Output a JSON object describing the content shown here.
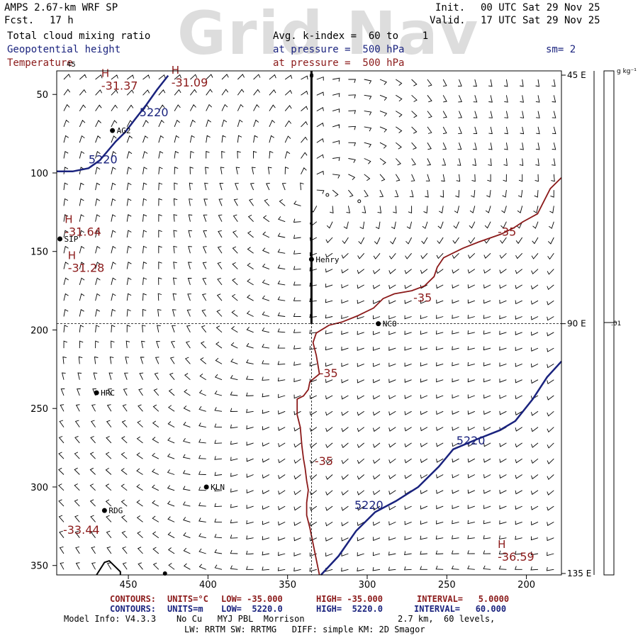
{
  "watermark": "Grid Nav",
  "header": {
    "model": "AMPS 2.67-km WRF SP",
    "fcst_label": "Fcst.",
    "fcst_value": "17 h",
    "init_label": "Init.",
    "init_value": "00 UTC Sat 29 Nov 25",
    "valid_label": "Valid.",
    "valid_value": "17 UTC Sat 29 Nov 25",
    "field1": "Total cloud mixing ratio",
    "field2": "Geopotential height",
    "field3": "Temperature",
    "avg": "Avg. k-index =  60 to    1",
    "pressure2": "at pressure =  500 hPa",
    "pressure3": "at pressure =  500 hPa",
    "sm": "sm= 2"
  },
  "colorbar": {
    "unit": "g kg⁻¹",
    "tick": ".01"
  },
  "legend": {
    "temp": {
      "contours": "CONTOURS:",
      "units": "UNITS=°C",
      "low": "LOW= -35.000",
      "high": "HIGH= -35.000",
      "interval": "INTERVAL=   5.0000"
    },
    "height": {
      "contours": "CONTOURS:",
      "units": "UNITS=m",
      "low": "LOW=  5220.0",
      "high": "HIGH=  5220.0",
      "interval": "INTERVAL=   60.000"
    }
  },
  "footer": {
    "model_info": "Model Info: V4.3.3    No Cu   MYJ PBL  Morrison",
    "resolution": "2.7 km,  60 levels,",
    "line2": "LW: RRTM SW: RRTMG   DIFF: simple KM: 2D Smagor"
  },
  "colors": {
    "height": "#1a237e",
    "temperature": "#8b1a1a",
    "watermark": "#dddddd"
  },
  "chart_data": {
    "type": "contour",
    "x_axis": {
      "lim": [
        495,
        178
      ],
      "ticks": [
        450,
        400,
        350,
        300,
        250,
        200
      ]
    },
    "y_axis": {
      "lim": [
        35,
        356
      ],
      "ticks": [
        50,
        100,
        150,
        200,
        250,
        300,
        350
      ]
    },
    "right_axis": [
      "45 E",
      "90 E",
      "135 E"
    ],
    "top_marker": "0",
    "top_left_marker": "45",
    "cross_x": 335,
    "cross_y": 196,
    "stations": [
      {
        "name": "AG2",
        "x": 460,
        "y": 73
      },
      {
        "name": "SIP",
        "x": 493,
        "y": 142
      },
      {
        "name": "Henry",
        "x": 335,
        "y": 155
      },
      {
        "name": "NCO",
        "x": 293,
        "y": 196
      },
      {
        "name": "HRC",
        "x": 470,
        "y": 240
      },
      {
        "name": "KLN",
        "x": 401,
        "y": 300
      },
      {
        "name": "RDG",
        "x": 465,
        "y": 315
      }
    ],
    "height_contours": [
      {
        "level": 5220,
        "points": [
          [
            495,
            99
          ],
          [
            485,
            99
          ],
          [
            475,
            97
          ],
          [
            468,
            92
          ],
          [
            463,
            86
          ],
          [
            458,
            80
          ],
          [
            452,
            74
          ],
          [
            446,
            66
          ],
          [
            439,
            57
          ],
          [
            432,
            47
          ],
          [
            425,
            38
          ]
        ]
      },
      {
        "level": 5220,
        "points": [
          [
            329,
            356
          ],
          [
            318,
            344
          ],
          [
            307,
            328
          ],
          [
            295,
            316
          ],
          [
            282,
            309
          ],
          [
            268,
            300
          ],
          [
            255,
            287
          ],
          [
            246,
            276
          ],
          [
            232,
            270
          ],
          [
            217,
            264
          ],
          [
            207,
            258
          ],
          [
            196,
            244
          ],
          [
            187,
            230
          ],
          [
            178,
            220
          ]
        ]
      }
    ],
    "height_labels": [
      {
        "text": "5220",
        "x": 443,
        "y": 64
      },
      {
        "text": "5220",
        "x": 475,
        "y": 94
      },
      {
        "text": "5220",
        "x": 244,
        "y": 273
      },
      {
        "text": "5220",
        "x": 308,
        "y": 314
      }
    ],
    "temp_contours": [
      {
        "level": -35,
        "points": [
          [
            178,
            103
          ],
          [
            185,
            110
          ],
          [
            190,
            120
          ],
          [
            193,
            126
          ],
          [
            202,
            131
          ],
          [
            208,
            135
          ],
          [
            216,
            139
          ],
          [
            230,
            144
          ],
          [
            240,
            148
          ],
          [
            252,
            154
          ],
          [
            256,
            160
          ],
          [
            258,
            166
          ],
          [
            264,
            172
          ],
          [
            272,
            175
          ],
          [
            283,
            177
          ],
          [
            290,
            180
          ],
          [
            296,
            186
          ],
          [
            306,
            191
          ],
          [
            316,
            195
          ],
          [
            324,
            197
          ],
          [
            332,
            202
          ],
          [
            334,
            208
          ],
          [
            332,
            216
          ],
          [
            331,
            222
          ],
          [
            330,
            228
          ],
          [
            336,
            233
          ],
          [
            337,
            238
          ],
          [
            340,
            242
          ],
          [
            344,
            244
          ],
          [
            344,
            254
          ],
          [
            342,
            262
          ],
          [
            341,
            274
          ],
          [
            340,
            282
          ],
          [
            339,
            288
          ],
          [
            338,
            296
          ],
          [
            337,
            302
          ],
          [
            338,
            310
          ],
          [
            338,
            318
          ],
          [
            336,
            326
          ],
          [
            334,
            336
          ],
          [
            332,
            346
          ],
          [
            330,
            356
          ]
        ]
      }
    ],
    "temp_labels": [
      {
        "text": "-35",
        "x": 218,
        "y": 140
      },
      {
        "text": "-35",
        "x": 271,
        "y": 182
      },
      {
        "text": "-35",
        "x": 330,
        "y": 230
      },
      {
        "text": "-35",
        "x": 333,
        "y": 286
      }
    ],
    "extrema": [
      {
        "type": "H",
        "value": "-31.37",
        "x": 467,
        "y": 46
      },
      {
        "type": "H",
        "value": "-31.09",
        "x": 423,
        "y": 44
      },
      {
        "type": "H",
        "value": "-31.64",
        "x": 490,
        "y": 139
      },
      {
        "type": "H",
        "value": "-31.28",
        "x": 488,
        "y": 162
      },
      {
        "type": "",
        "value": "-33.44",
        "x": 491,
        "y": 329
      },
      {
        "type": "H",
        "value": "-36.59",
        "x": 218,
        "y": 346
      }
    ],
    "bottom_contour": {
      "points": [
        [
          470,
          356
        ],
        [
          465,
          348
        ],
        [
          462,
          347
        ],
        [
          455,
          354
        ],
        [
          455,
          356
        ]
      ]
    }
  }
}
